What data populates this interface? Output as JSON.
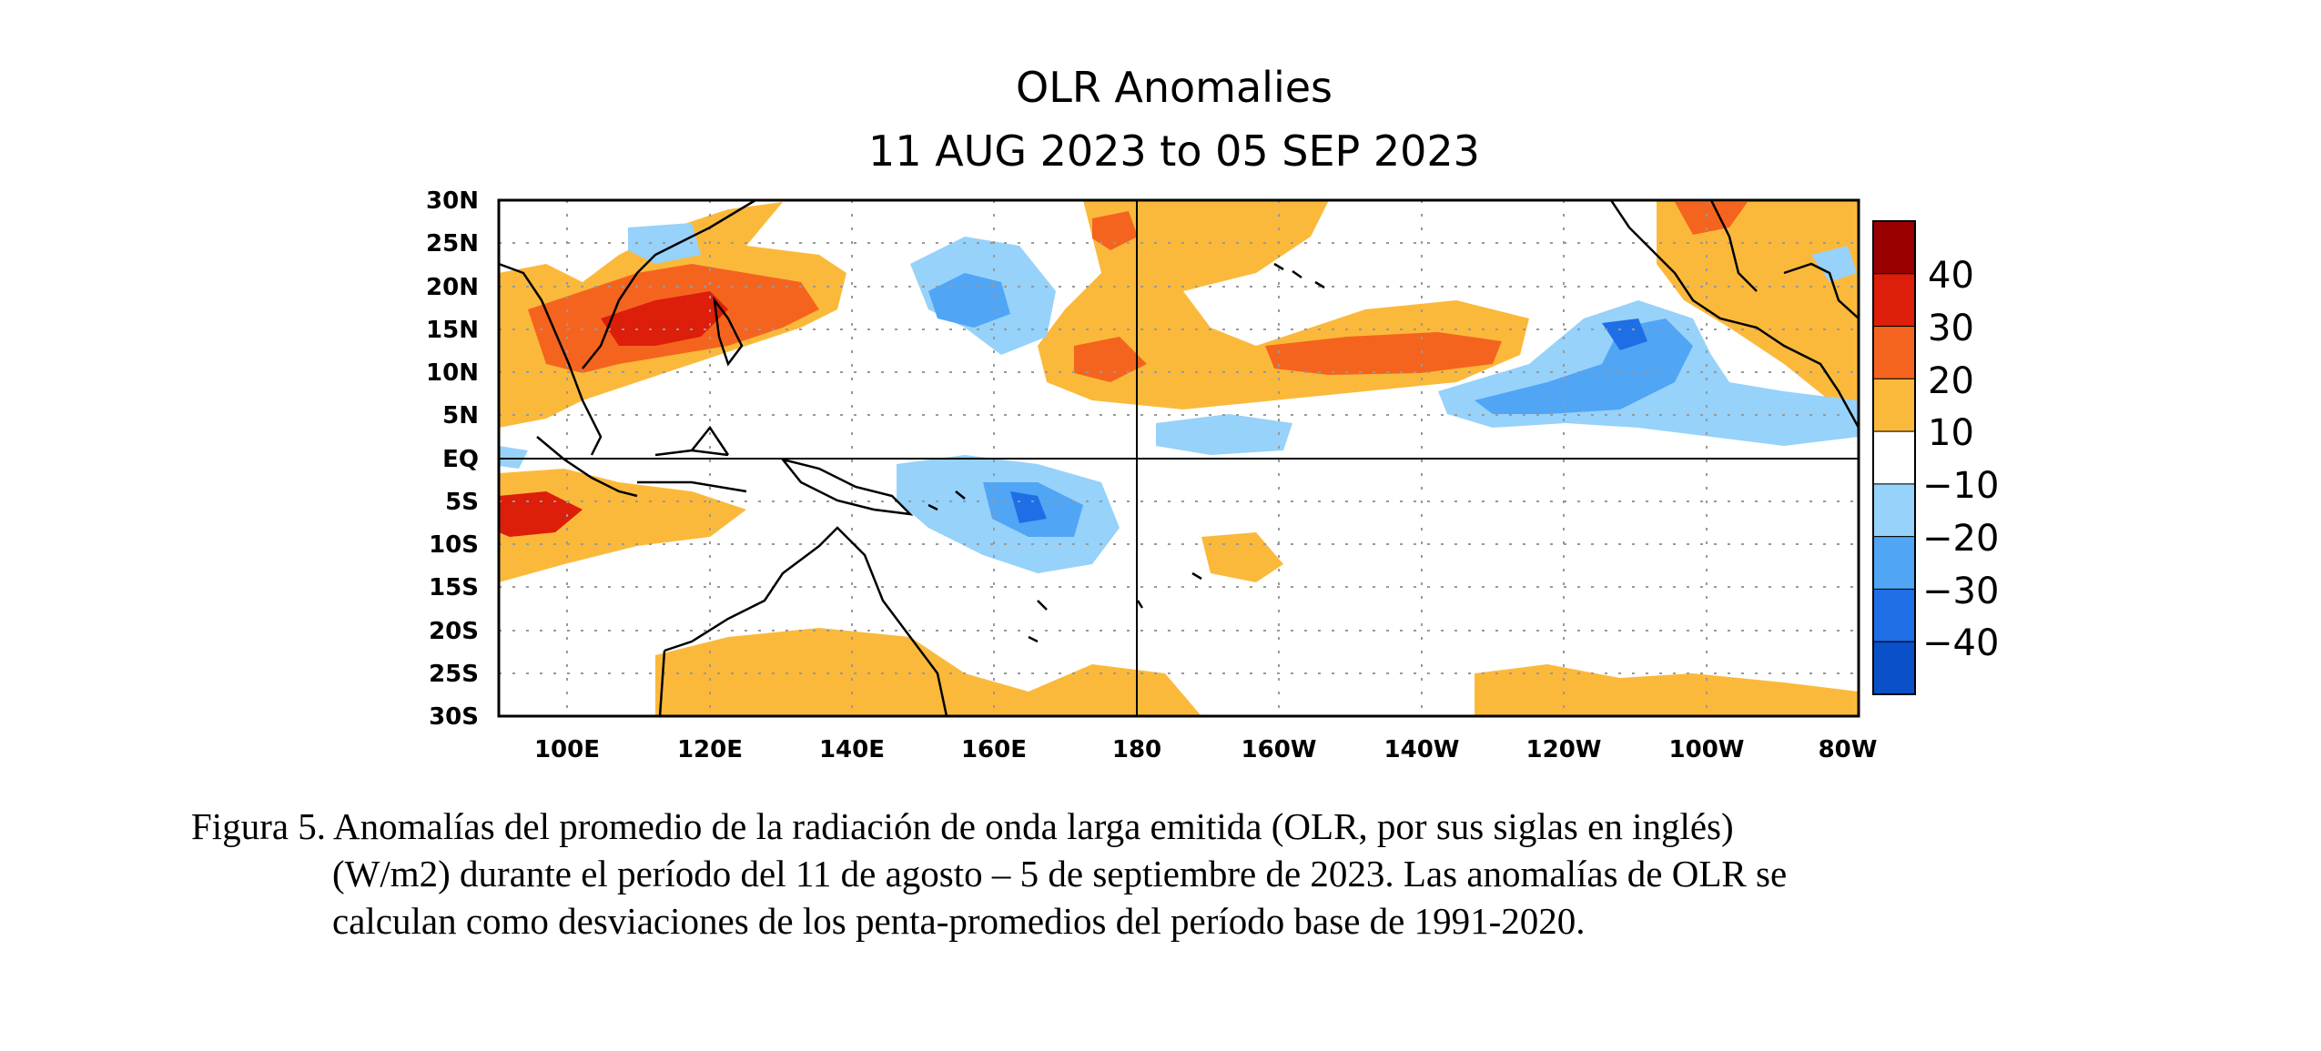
{
  "figure": {
    "title": "OLR Anomalies",
    "subtitle": "11 AUG 2023 to 05 SEP 2023",
    "x_ticks": [
      "100E",
      "120E",
      "140E",
      "160E",
      "180",
      "160W",
      "140W",
      "120W",
      "100W",
      "80W"
    ],
    "y_ticks": [
      "30N",
      "25N",
      "20N",
      "15N",
      "10N",
      "5N",
      "EQ",
      "5S",
      "10S",
      "15S",
      "20S",
      "25S",
      "30S"
    ],
    "colorbar": {
      "labels": [
        "40",
        "30",
        "20",
        "10",
        "−10",
        "−20",
        "−30",
        "−40"
      ],
      "colors": [
        "#9b0000",
        "#dc1e0a",
        "#f5641e",
        "#fbb93c",
        "#ffffff",
        "#96d2fa",
        "#50a5f5",
        "#1e6ee6",
        "#0a50c8"
      ]
    }
  },
  "caption": {
    "line1": "Figura 5. Anomalías del promedio de la radiación de onda larga emitida (OLR, por sus siglas en inglés)",
    "line2": "(W/m2) durante el período del 11 de agosto – 5 de septiembre de 2023.  Las anomalías de OLR se",
    "line3": "calculan como desviaciones de los penta-promedios del período base de 1991-2020."
  }
}
